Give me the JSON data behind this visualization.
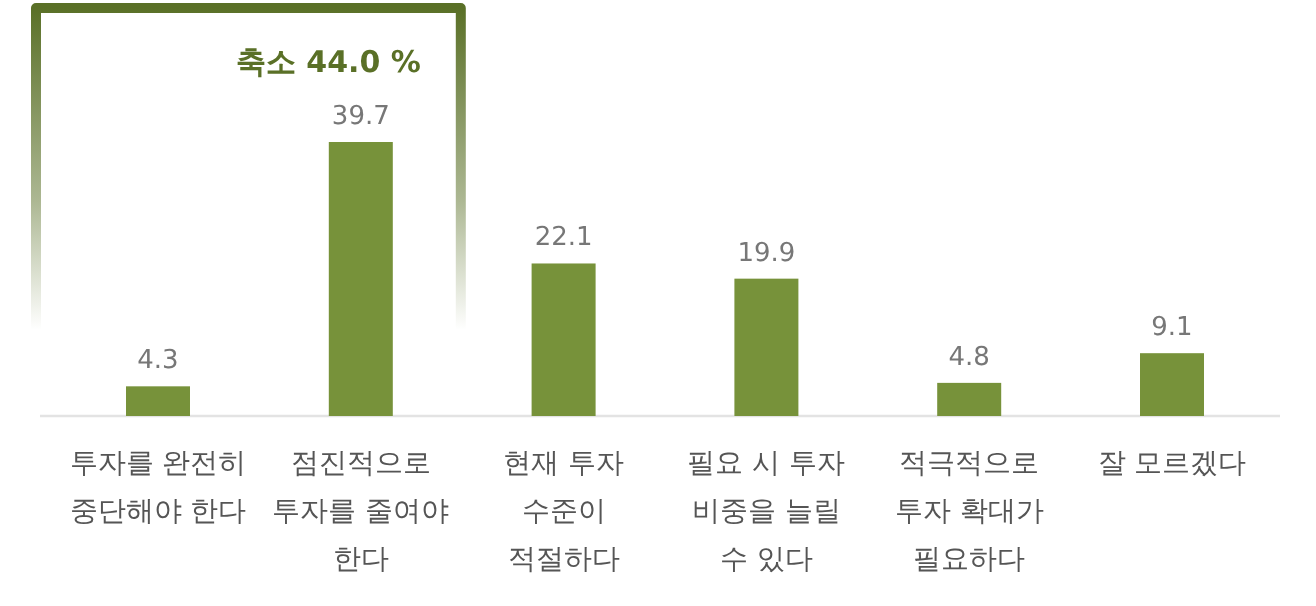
{
  "chart_data": {
    "type": "bar",
    "data_labels": true,
    "categories": [
      "투자를 완전히 중단해야 한다",
      "점진적으로 투자를 줄여야 한다",
      "현재 투자 수준이 적절하다",
      "필요 시 투자 비중을 늘릴 수 있다",
      "적극적으로 투자 확대가 필요하다",
      "잘 모르겠다"
    ],
    "values": [
      4.3,
      39.7,
      22.1,
      19.9,
      4.8,
      9.1
    ],
    "color": "#77923a",
    "annotations": [
      "축소 44.0 %"
    ]
  }
}
